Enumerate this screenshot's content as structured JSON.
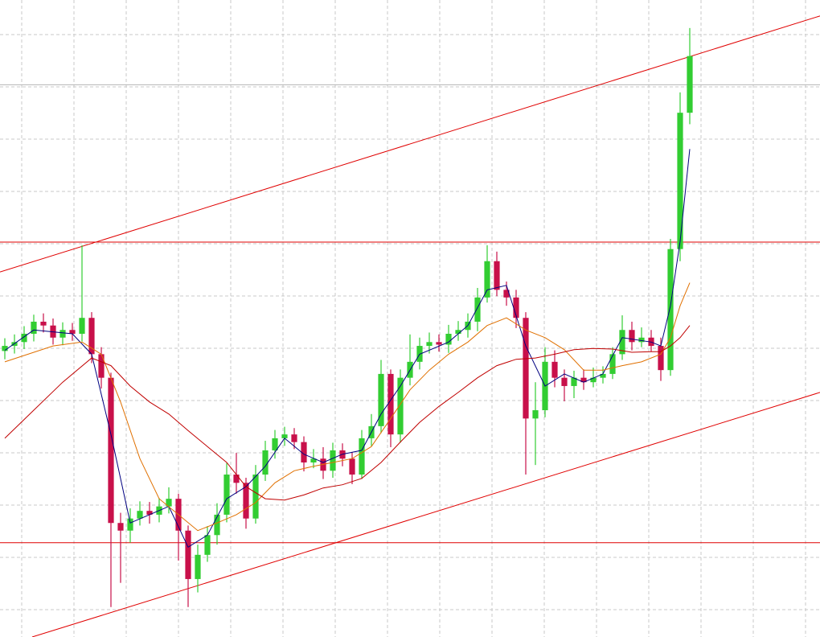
{
  "chart_data": {
    "type": "candlestick",
    "xlim": [
      -0.5,
      84.5
    ],
    "ylim": [
      0,
      100
    ],
    "grid": true,
    "up_color": "#32cd32",
    "down_color": "#c8104a",
    "open": [
      44.9,
      45.7,
      46.3,
      47.6,
      49.5,
      48.9,
      47.0,
      48.2,
      47.6,
      50.1,
      44.4,
      40.7,
      17.9,
      16.7,
      18.6,
      19.8,
      19.2,
      20.5,
      21.7,
      16.7,
      9.1,
      12.9,
      16.0,
      19.2,
      25.5,
      24.2,
      18.6,
      25.5,
      29.3,
      31.2,
      31.8,
      30.6,
      27.4,
      28.0,
      26.1,
      29.3,
      28.0,
      25.5,
      31.2,
      33.1,
      41.3,
      31.8,
      40.7,
      43.2,
      45.7,
      46.3,
      45.9,
      47.6,
      48.2,
      49.5,
      53.3,
      59.0,
      54.5,
      53.3,
      50.1,
      34.3,
      35.6,
      43.2,
      40.7,
      39.4,
      40.7,
      40.0,
      40.7,
      41.3,
      44.4,
      48.2,
      46.3,
      47.0,
      45.7,
      41.9,
      60.9,
      82.3
    ],
    "high": [
      46.9,
      47.5,
      48.8,
      50.6,
      50.8,
      50.0,
      49.4,
      49.3,
      61.5,
      51.0,
      45.5,
      41.5,
      19.5,
      20.2,
      21.3,
      21.2,
      21.8,
      23.5,
      22.5,
      17.5,
      14.5,
      17.4,
      21.0,
      27.3,
      28.9,
      25.0,
      27.0,
      30.8,
      32.5,
      33.0,
      32.8,
      31.5,
      29.5,
      29.8,
      30.5,
      30.4,
      29.0,
      32.5,
      35.0,
      43.5,
      42.0,
      42.0,
      47.5,
      47.0,
      47.8,
      47.5,
      49.0,
      49.6,
      50.8,
      54.8,
      61.5,
      60.5,
      55.8,
      54.5,
      51.0,
      40.0,
      45.5,
      45.0,
      42.0,
      41.8,
      42.0,
      42.3,
      42.5,
      45.5,
      50.5,
      49.5,
      48.6,
      48.2,
      47.0,
      62.5,
      85.5,
      95.6
    ],
    "low": [
      43.6,
      44.5,
      45.2,
      46.4,
      47.8,
      45.9,
      45.8,
      46.5,
      46.4,
      43.0,
      39.0,
      4.7,
      8.5,
      14.8,
      17.5,
      17.8,
      18.0,
      19.4,
      12.0,
      4.7,
      7.0,
      11.8,
      14.5,
      18.0,
      22.5,
      17.0,
      17.8,
      24.5,
      28.0,
      30.0,
      29.5,
      26.0,
      26.5,
      24.8,
      25.0,
      26.8,
      24.0,
      24.8,
      30.0,
      32.0,
      29.8,
      30.5,
      39.5,
      42.0,
      44.5,
      44.8,
      44.6,
      46.5,
      47.0,
      48.0,
      52.5,
      53.5,
      52.0,
      48.5,
      25.5,
      27.0,
      34.5,
      39.2,
      37.0,
      37.5,
      38.8,
      39.2,
      39.8,
      40.5,
      43.5,
      45.0,
      45.5,
      44.8,
      40.2,
      41.0,
      59.0,
      80.5
    ],
    "close": [
      45.7,
      46.3,
      47.6,
      49.5,
      48.9,
      47.0,
      48.2,
      47.6,
      50.1,
      44.4,
      40.7,
      17.9,
      16.7,
      18.6,
      19.8,
      19.2,
      20.5,
      21.7,
      16.7,
      9.1,
      12.9,
      16.0,
      19.2,
      25.5,
      24.2,
      18.6,
      25.5,
      29.3,
      31.2,
      31.8,
      30.6,
      27.4,
      28.0,
      26.1,
      29.3,
      28.0,
      25.5,
      31.2,
      33.1,
      41.3,
      31.8,
      40.7,
      43.2,
      45.7,
      46.3,
      45.9,
      47.6,
      48.2,
      49.5,
      53.3,
      59.0,
      54.5,
      53.3,
      50.1,
      34.3,
      35.6,
      43.2,
      40.7,
      39.4,
      40.7,
      40.0,
      40.7,
      41.3,
      44.4,
      48.2,
      46.3,
      47.0,
      45.7,
      41.9,
      60.9,
      82.3,
      91.2
    ],
    "series": [
      {
        "color": "#000080",
        "x": [
          0,
          3,
          7,
          9,
          11,
          13,
          15,
          17,
          19,
          21,
          23,
          25,
          27,
          29,
          31,
          33,
          35,
          37,
          39,
          41,
          43,
          46,
          48,
          50,
          52,
          54,
          56,
          58,
          60,
          62,
          64,
          67,
          68,
          69,
          70,
          71
        ],
        "values": [
          45.0,
          48.2,
          47.6,
          44.4,
          31.8,
          17.9,
          19.2,
          20.5,
          14.1,
          16.0,
          21.7,
          23.6,
          26.8,
          31.2,
          28.7,
          27.4,
          28.7,
          29.3,
          35.0,
          39.4,
          44.4,
          46.3,
          48.9,
          54.5,
          55.2,
          45.7,
          39.4,
          41.3,
          40.0,
          41.3,
          47.0,
          46.3,
          45.7,
          52.0,
          62.1,
          76.6
        ]
      },
      {
        "color": "#e07000",
        "x": [
          0,
          5,
          8,
          10,
          12,
          14,
          16,
          18,
          20,
          22,
          24,
          26,
          28,
          30,
          32,
          34,
          36,
          38,
          40,
          42,
          44,
          46,
          48,
          50,
          52,
          54,
          56,
          58,
          60,
          62,
          64,
          66,
          68,
          69,
          70,
          71
        ],
        "values": [
          43.2,
          45.7,
          46.3,
          44.4,
          36.9,
          28.0,
          21.7,
          19.2,
          16.7,
          17.9,
          19.2,
          21.1,
          24.2,
          26.1,
          26.8,
          27.4,
          28.0,
          29.9,
          34.3,
          38.8,
          41.9,
          44.4,
          46.3,
          48.9,
          50.1,
          48.2,
          47.0,
          45.1,
          41.9,
          41.9,
          42.6,
          43.2,
          44.4,
          47.0,
          52.0,
          55.6
        ]
      },
      {
        "color": "#c00000",
        "x": [
          0,
          3,
          6,
          9,
          11,
          13,
          15,
          17,
          19,
          21,
          23,
          25,
          27,
          29,
          31,
          33,
          35,
          37,
          39,
          41,
          43,
          45,
          47,
          49,
          51,
          53,
          55,
          57,
          59,
          61,
          63,
          65,
          67,
          68,
          69,
          70,
          71
        ],
        "values": [
          31.2,
          35.6,
          40.0,
          43.8,
          42.6,
          39.4,
          36.9,
          35.0,
          32.4,
          29.9,
          27.4,
          23.6,
          21.7,
          21.5,
          22.3,
          23.4,
          23.9,
          24.9,
          27.4,
          30.6,
          33.7,
          36.2,
          38.4,
          40.7,
          42.6,
          43.6,
          43.8,
          44.4,
          45.1,
          45.3,
          45.2,
          44.7,
          44.8,
          44.8,
          45.7,
          47.0,
          48.9
        ]
      }
    ],
    "levels": {
      "color": "#e00000",
      "values": [
        62.0,
        14.8
      ]
    },
    "trendlines": [
      {
        "color": "#e00000",
        "x": [
          -0.5,
          84.5
        ],
        "values": [
          57.3,
          97.5
        ]
      },
      {
        "color": "#e00000",
        "x": [
          2.83,
          84.5
        ],
        "values": [
          0,
          38.4
        ]
      }
    ],
    "price_line": {
      "color": "#b4b4b4",
      "value": 86.7
    }
  }
}
